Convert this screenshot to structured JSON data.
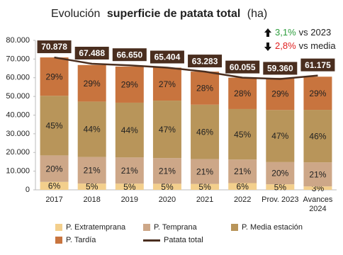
{
  "chart_data": {
    "type": "bar",
    "stacked": true,
    "title": [
      "Evolución",
      "superficie de patata total",
      "(ha)"
    ],
    "annotations": [
      {
        "value_text": "3,1%",
        "text": "vs 2023",
        "color": "#2e9e3e"
      },
      {
        "value_text": "2,8%",
        "text": "vs media",
        "color": "#e02020"
      }
    ],
    "categories": [
      "2017",
      "2018",
      "2019",
      "2020",
      "2021",
      "2022",
      "Prov. 2023",
      "Avances 2024"
    ],
    "series": [
      {
        "name": "P. Extratemprana",
        "color": "#f3cf8c",
        "values": [
          6,
          5,
          5,
          5,
          5,
          6,
          5,
          3
        ],
        "value_labels": [
          "6%",
          "5%",
          "5%",
          "5%",
          "5%",
          "6%",
          "5%",
          "3%"
        ]
      },
      {
        "name": "P. Temprana",
        "color": "#cda788",
        "values": [
          20,
          21,
          21,
          21,
          21,
          21,
          20,
          21
        ],
        "value_labels": [
          "20%",
          "21%",
          "21%",
          "21%",
          "21%",
          "21%",
          "20%",
          "21%"
        ]
      },
      {
        "name": "P. Media estación",
        "color": "#b8955a",
        "values": [
          45,
          44,
          44,
          47,
          46,
          45,
          47,
          46
        ],
        "value_labels": [
          "45%",
          "44%",
          "44%",
          "47%",
          "46%",
          "45%",
          "47%",
          "46%"
        ]
      },
      {
        "name": "P. Tardía",
        "color": "#c8743e",
        "values": [
          29,
          29,
          29,
          27,
          28,
          28,
          29,
          29
        ],
        "value_labels": [
          "29%",
          "29%",
          "29%",
          "27%",
          "28%",
          "28%",
          "29%",
          "29%"
        ]
      },
      {
        "name": "Patata total",
        "type": "line",
        "color": "#4a2e1f",
        "values": [
          70878,
          67488,
          66650,
          65404,
          63283,
          60055,
          59360,
          61175
        ],
        "value_labels": [
          "70.878",
          "67.488",
          "66.650",
          "65.404",
          "63.283",
          "60.055",
          "59.360",
          "61.175"
        ]
      }
    ],
    "ylim": [
      0,
      80000
    ],
    "yticks": [
      0,
      {
        "value": 10000,
        "label": "10.000"
      },
      {
        "value": 20000,
        "label": "20.000"
      },
      {
        "value": 30000,
        "label": "30.000"
      },
      {
        "value": 40000,
        "label": "40.000"
      },
      {
        "value": 50000,
        "label": "50.000"
      },
      {
        "value": 60000,
        "label": "60.000"
      },
      {
        "value": 70000,
        "label": "70.000"
      },
      {
        "value": 80000,
        "label": "80.000"
      }
    ],
    "grid": false
  }
}
